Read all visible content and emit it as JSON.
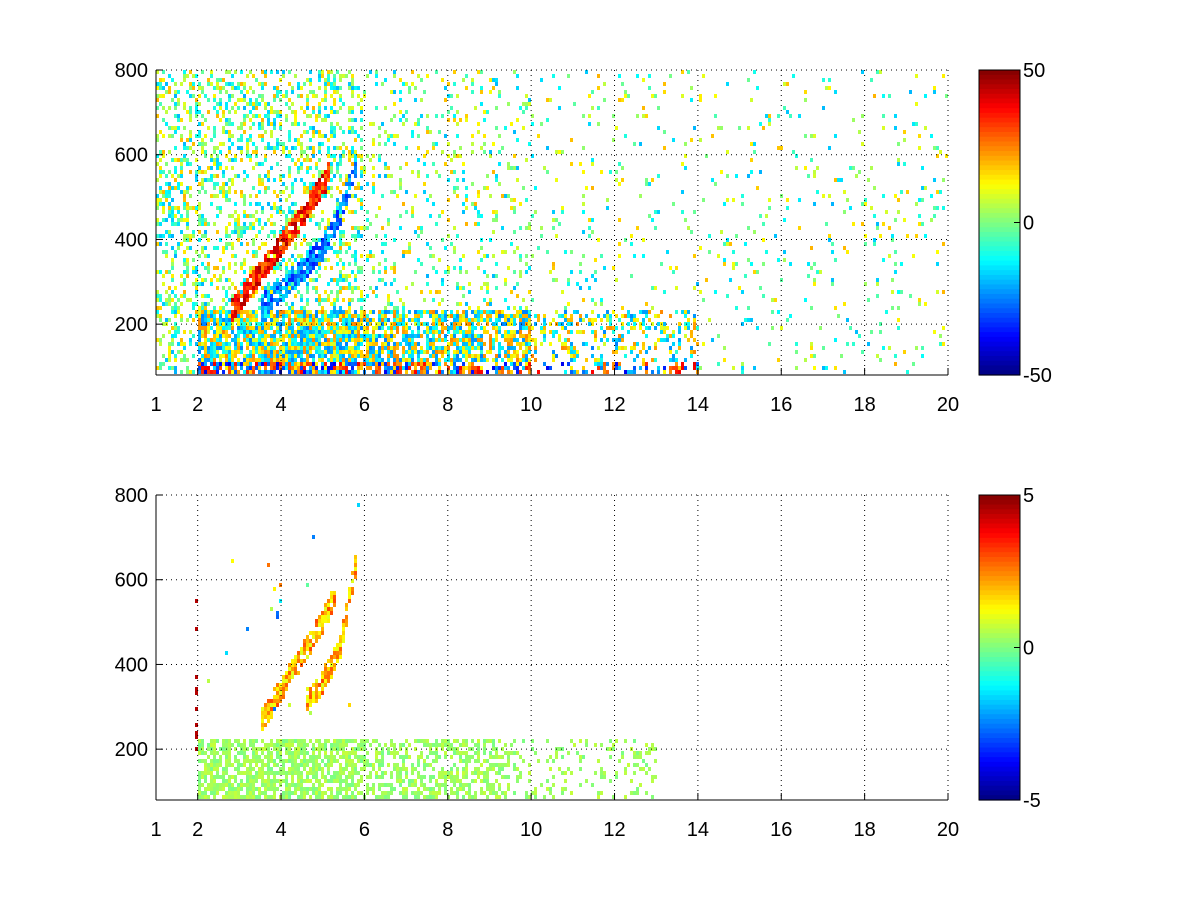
{
  "chart_data": [
    {
      "type": "heatmap",
      "title": "",
      "xlabel": "",
      "ylabel": "",
      "xlim": [
        1,
        20
      ],
      "ylim": [
        80,
        800
      ],
      "xticks": [
        1,
        2,
        4,
        6,
        8,
        10,
        12,
        14,
        16,
        18,
        20
      ],
      "yticks": [
        200,
        400,
        600,
        800
      ],
      "grid": true,
      "colormap": "jet",
      "colorbar": {
        "min": -50,
        "max": 50,
        "ticks": [
          50,
          0,
          -50
        ]
      },
      "features": [
        {
          "name": "ridge-positive",
          "x": [
            2.8,
            3.2,
            3.6,
            4.0,
            4.4,
            4.8,
            5.2
          ],
          "y": [
            230,
            285,
            335,
            385,
            440,
            500,
            560
          ],
          "value": 35
        },
        {
          "name": "ridge-negative",
          "x": [
            3.5,
            4.0,
            4.5,
            5.0,
            5.4,
            5.8
          ],
          "y": [
            240,
            280,
            325,
            380,
            450,
            580
          ],
          "value": -25
        },
        {
          "name": "low-band-mixed",
          "x": [
            2.0,
            14.0
          ],
          "y": [
            80,
            230
          ],
          "value": "+/-50"
        }
      ]
    },
    {
      "type": "heatmap",
      "title": "",
      "xlabel": "",
      "ylabel": "",
      "xlim": [
        1,
        20
      ],
      "ylim": [
        80,
        800
      ],
      "xticks": [
        1,
        2,
        4,
        6,
        8,
        10,
        12,
        14,
        16,
        18,
        20
      ],
      "yticks": [
        200,
        400,
        600,
        800
      ],
      "grid": true,
      "colormap": "jet",
      "colorbar": {
        "min": -5,
        "max": 5,
        "ticks": [
          5,
          0,
          -5
        ]
      },
      "features": [
        {
          "name": "ridge-a",
          "x": [
            3.5,
            4.0,
            4.5,
            5.0,
            5.3
          ],
          "y": [
            260,
            340,
            420,
            500,
            560
          ],
          "value": 2
        },
        {
          "name": "ridge-b",
          "x": [
            4.6,
            5.0,
            5.4,
            5.8
          ],
          "y": [
            310,
            360,
            430,
            640
          ],
          "value": 2
        },
        {
          "name": "low-band-flat",
          "x": [
            2.0,
            13.0
          ],
          "y": [
            80,
            220
          ],
          "value": 0.3
        }
      ]
    }
  ]
}
